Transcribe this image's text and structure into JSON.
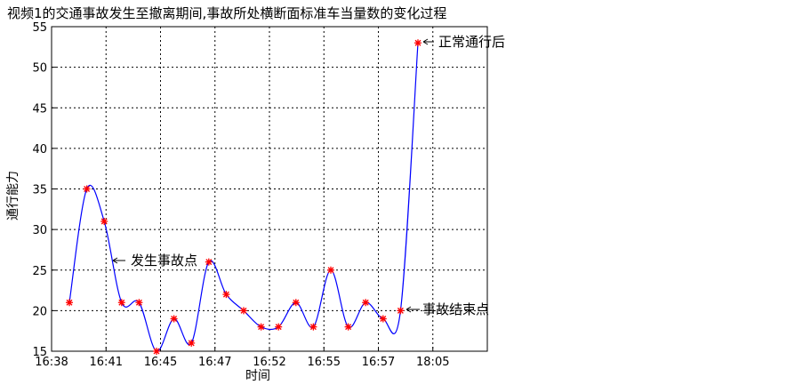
{
  "chart_data": {
    "type": "line",
    "title": "视频1的交通事故发生至撤离期间,事故所处横断面标准车当量数的变化过程",
    "xlabel": "时间",
    "ylabel": "通行能力",
    "ylim": [
      15,
      55
    ],
    "yticks": [
      15,
      20,
      25,
      30,
      35,
      40,
      45,
      50,
      55
    ],
    "xticks": [
      "16:38",
      "16:41",
      "16:45",
      "16:47",
      "16:52",
      "16:55",
      "16:57",
      "18:05"
    ],
    "grid": true,
    "series": [
      {
        "values": [
          21,
          35,
          31,
          21,
          21,
          15,
          19,
          16,
          26,
          22,
          20,
          18,
          18,
          21,
          18,
          25,
          18,
          21,
          19,
          20,
          53
        ]
      }
    ],
    "annotations": [
      {
        "text": "正常通行后"
      },
      {
        "text": "发生事故点"
      },
      {
        "text": "事故结束点"
      }
    ],
    "colors": {
      "line": "#0000ff",
      "marker": "#ff0000"
    }
  }
}
